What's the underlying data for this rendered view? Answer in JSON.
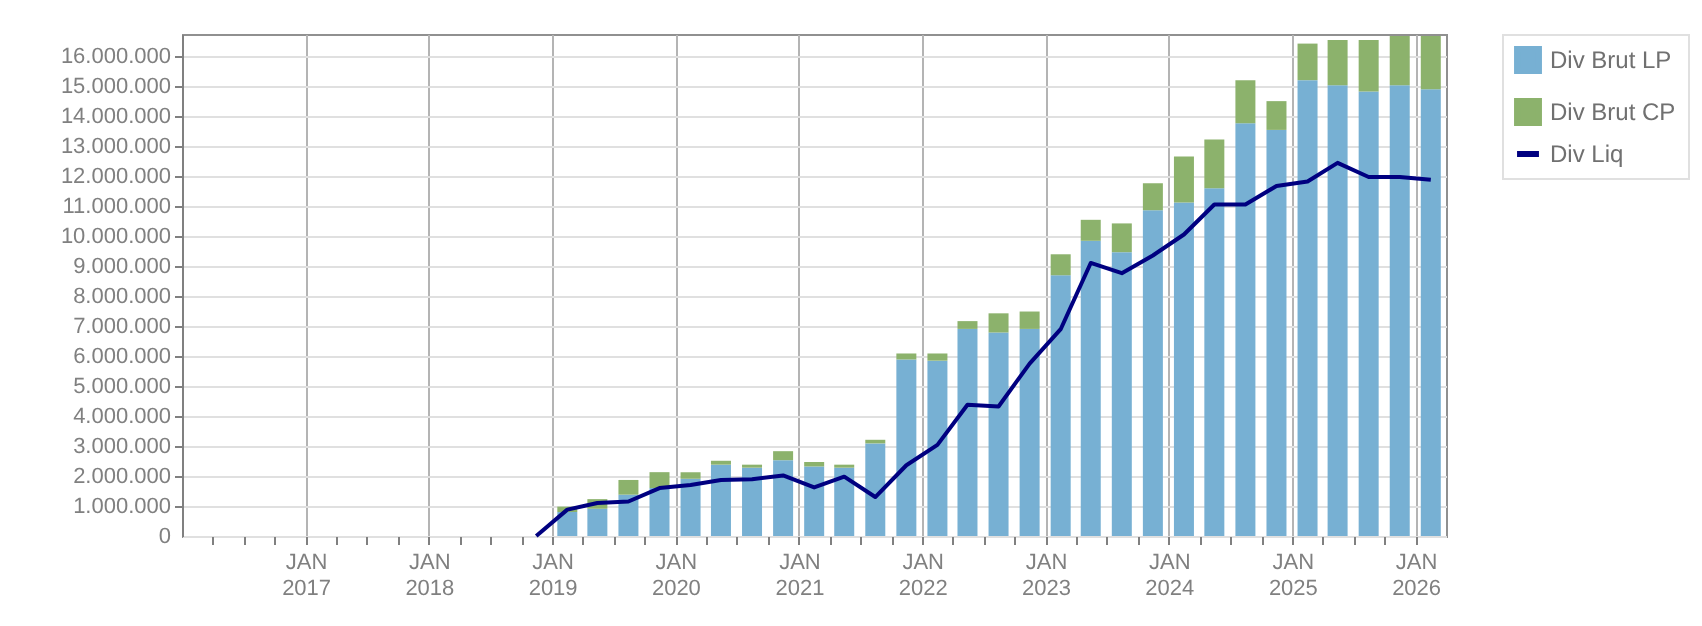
{
  "chart_data": {
    "type": "bar",
    "stacked": true,
    "grid": true,
    "legend": "top right",
    "x": [
      "2019-02-15",
      "2019-05-15",
      "2019-08-15",
      "2019-11-15",
      "2020-02-15",
      "2020-05-15",
      "2020-08-15",
      "2020-11-15",
      "2021-02-15",
      "2021-05-15",
      "2021-08-15",
      "2021-11-15",
      "2022-02-15",
      "2022-05-15",
      "2022-08-15",
      "2022-11-15",
      "2023-02-15",
      "2023-05-15",
      "2023-08-15",
      "2023-11-15",
      "2024-02-15",
      "2024-05-15",
      "2024-08-15",
      "2024-11-15",
      "2025-02-15",
      "2025-05-15",
      "2025-08-15",
      "2025-11-15",
      "2026-02-15"
    ],
    "series": [
      {
        "name": "Div Brut LP",
        "color": "#77b0d3",
        "values": [
          800000,
          910000,
          1380000,
          1600000,
          1910000,
          2380000,
          2280000,
          2530000,
          2320000,
          2280000,
          3090000,
          5890000,
          5850000,
          6910000,
          6790000,
          6910000,
          8700000,
          9850000,
          9470000,
          10870000,
          11130000,
          11600000,
          13770000,
          13550000,
          15210000,
          15040000,
          14830000,
          15040000,
          14910000
        ]
      },
      {
        "name": "Div Brut CP",
        "color": "#8cb26c",
        "values": [
          180000,
          320000,
          490000,
          530000,
          220000,
          130000,
          100000,
          300000,
          150000,
          100000,
          120000,
          200000,
          240000,
          260000,
          640000,
          580000,
          700000,
          700000,
          960000,
          900000,
          1530000,
          1630000,
          1440000,
          960000,
          1220000,
          1510000,
          1720000,
          1640000,
          1770000
        ]
      },
      {
        "name": "Div Liq",
        "type": "line",
        "color": "#000080",
        "x": [
          "2018-11-15",
          "2019-02-15",
          "2019-05-15",
          "2019-08-15",
          "2019-11-15",
          "2020-02-15",
          "2020-05-15",
          "2020-08-15",
          "2020-11-15",
          "2021-02-15",
          "2021-05-15",
          "2021-08-15",
          "2021-11-15",
          "2022-02-15",
          "2022-05-15",
          "2022-08-15",
          "2022-11-15",
          "2023-02-15",
          "2023-05-15",
          "2023-08-15",
          "2023-11-15",
          "2024-02-15",
          "2024-05-15",
          "2024-08-15",
          "2024-11-15",
          "2025-02-15",
          "2025-05-15",
          "2025-08-15",
          "2025-11-15",
          "2026-02-15"
        ],
        "values": [
          0,
          880000,
          1100000,
          1150000,
          1600000,
          1700000,
          1870000,
          1890000,
          2020000,
          1620000,
          1980000,
          1300000,
          2360000,
          3040000,
          4380000,
          4320000,
          5750000,
          6900000,
          9110000,
          8770000,
          9360000,
          10060000,
          11060000,
          11060000,
          11680000,
          11830000,
          12450000,
          11980000,
          11980000,
          11890000
        ]
      }
    ],
    "xlim": [
      "2016-01-01",
      "2026-04-01"
    ],
    "xticks": [
      {
        "value": "2016-04-01",
        "label": null
      },
      {
        "value": "2016-07-01",
        "label": null
      },
      {
        "value": "2016-10-01",
        "label": null
      },
      {
        "value": "2017-01-01",
        "label": "JAN 2017"
      },
      {
        "value": "2017-04-01",
        "label": null
      },
      {
        "value": "2017-07-01",
        "label": null
      },
      {
        "value": "2017-10-01",
        "label": null
      },
      {
        "value": "2018-01-01",
        "label": "JAN 2018"
      },
      {
        "value": "2018-04-01",
        "label": null
      },
      {
        "value": "2018-07-01",
        "label": null
      },
      {
        "value": "2018-10-01",
        "label": null
      },
      {
        "value": "2019-01-01",
        "label": "JAN 2019"
      },
      {
        "value": "2019-04-01",
        "label": null
      },
      {
        "value": "2019-07-01",
        "label": null
      },
      {
        "value": "2019-10-01",
        "label": null
      },
      {
        "value": "2020-01-01",
        "label": "JAN 2020"
      },
      {
        "value": "2020-04-01",
        "label": null
      },
      {
        "value": "2020-07-01",
        "label": null
      },
      {
        "value": "2020-10-01",
        "label": null
      },
      {
        "value": "2021-01-01",
        "label": "JAN 2021"
      },
      {
        "value": "2021-04-01",
        "label": null
      },
      {
        "value": "2021-07-01",
        "label": null
      },
      {
        "value": "2021-10-01",
        "label": null
      },
      {
        "value": "2022-01-01",
        "label": "JAN 2022"
      },
      {
        "value": "2022-04-01",
        "label": null
      },
      {
        "value": "2022-07-01",
        "label": null
      },
      {
        "value": "2022-10-01",
        "label": null
      },
      {
        "value": "2023-01-01",
        "label": "JAN 2023"
      },
      {
        "value": "2023-04-01",
        "label": null
      },
      {
        "value": "2023-07-01",
        "label": null
      },
      {
        "value": "2023-10-01",
        "label": null
      },
      {
        "value": "2024-01-01",
        "label": "JAN 2024"
      },
      {
        "value": "2024-04-01",
        "label": null
      },
      {
        "value": "2024-07-01",
        "label": null
      },
      {
        "value": "2024-10-01",
        "label": null
      },
      {
        "value": "2025-01-01",
        "label": "JAN 2025"
      },
      {
        "value": "2025-04-01",
        "label": null
      },
      {
        "value": "2025-07-01",
        "label": null
      },
      {
        "value": "2025-10-01",
        "label": null
      },
      {
        "value": "2026-01-01",
        "label": "JAN 2026"
      }
    ],
    "ylim": [
      0,
      16750000
    ],
    "yticks": [
      {
        "value": 0,
        "label": "0"
      },
      {
        "value": 1000000,
        "label": "1.000.000"
      },
      {
        "value": 2000000,
        "label": "2.000.000"
      },
      {
        "value": 3000000,
        "label": "3.000.000"
      },
      {
        "value": 4000000,
        "label": "4.000.000"
      },
      {
        "value": 5000000,
        "label": "5.000.000"
      },
      {
        "value": 6000000,
        "label": "6.000.000"
      },
      {
        "value": 7000000,
        "label": "7.000.000"
      },
      {
        "value": 8000000,
        "label": "8.000.000"
      },
      {
        "value": 9000000,
        "label": "9.000.000"
      },
      {
        "value": 10000000,
        "label": "10.000.000"
      },
      {
        "value": 11000000,
        "label": "11.000.000"
      },
      {
        "value": 12000000,
        "label": "12.000.000"
      },
      {
        "value": 13000000,
        "label": "13.000.000"
      },
      {
        "value": 14000000,
        "label": "14.000.000"
      },
      {
        "value": 15000000,
        "label": "15.000.000"
      },
      {
        "value": 16000000,
        "label": "16.000.000"
      }
    ]
  }
}
